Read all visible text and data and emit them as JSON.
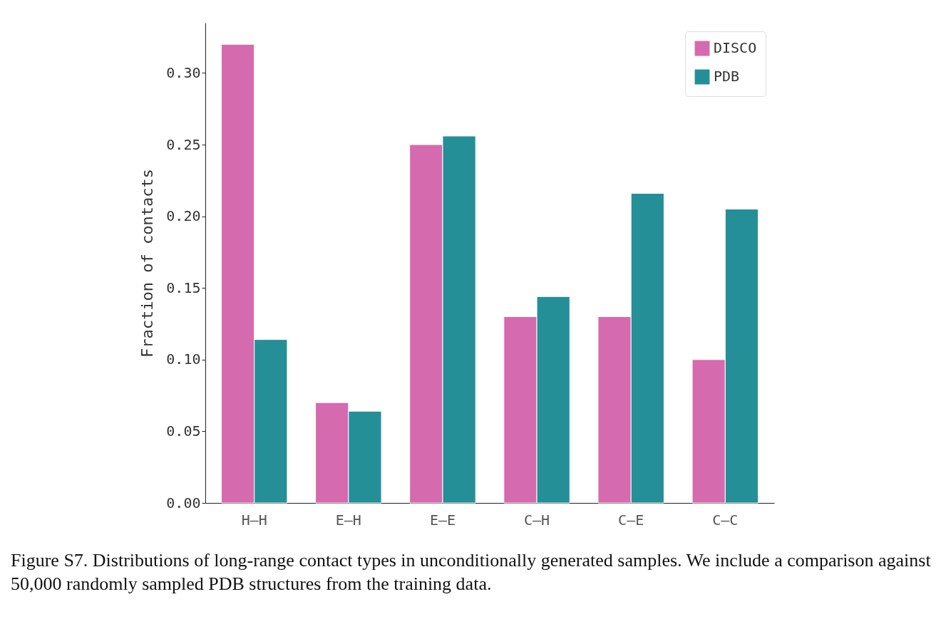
{
  "chart_data": {
    "type": "bar",
    "ylabel": "Fraction of contacts",
    "categories": [
      "H–H",
      "E–H",
      "E–E",
      "C–H",
      "C–E",
      "C–C"
    ],
    "series": [
      {
        "name": "DISCO",
        "color": "#d66aae",
        "values": [
          0.32,
          0.07,
          0.25,
          0.13,
          0.13,
          0.1
        ]
      },
      {
        "name": "PDB",
        "color": "#258f98",
        "values": [
          0.114,
          0.064,
          0.256,
          0.144,
          0.216,
          0.205
        ]
      }
    ],
    "ylim": [
      0,
      0.335
    ],
    "yticks": [
      {
        "value": 0,
        "label": "0.00"
      },
      {
        "value": 0.05,
        "label": "0.05"
      },
      {
        "value": 0.1,
        "label": "0.10"
      },
      {
        "value": 0.15,
        "label": "0.15"
      },
      {
        "value": 0.2,
        "label": "0.20"
      },
      {
        "value": 0.25,
        "label": "0.25"
      },
      {
        "value": 0.3,
        "label": "0.30"
      }
    ],
    "grid": false,
    "legend": "top right",
    "annotations": [
      "Figure S7. Distributions of long-range contact types in unconditionally generated samples. We include a comparison against 50,000 randomly sampled PDB structures from the training data."
    ]
  }
}
